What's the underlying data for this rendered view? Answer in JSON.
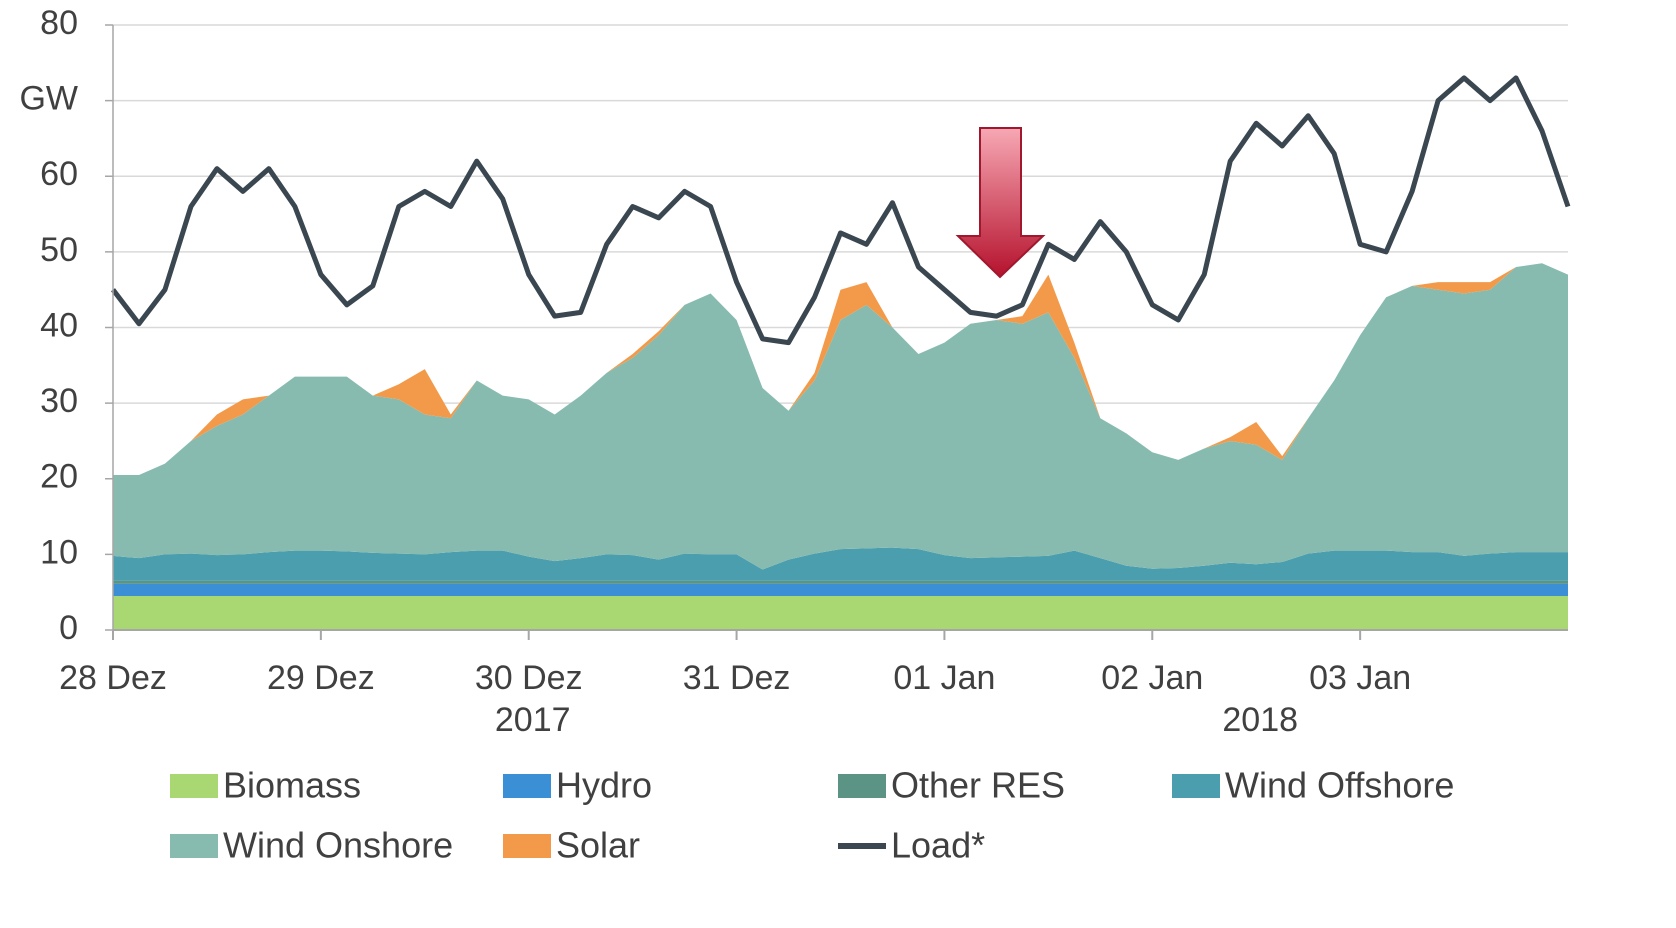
{
  "chart_data": {
    "type": "area",
    "stacked": true,
    "categories": [
      "28 Dez",
      null,
      null,
      null,
      null,
      null,
      null,
      null,
      "29 Dez",
      null,
      null,
      null,
      null,
      null,
      null,
      null,
      "30 Dez",
      null,
      null,
      null,
      null,
      null,
      null,
      null,
      "31 Dez",
      null,
      null,
      null,
      null,
      null,
      null,
      null,
      "01 Jan",
      null,
      null,
      null,
      null,
      null,
      null,
      null,
      "02 Jan",
      null,
      null,
      null,
      null,
      null,
      null,
      null,
      "03 Jan",
      null,
      null,
      null,
      null,
      null,
      null,
      null,
      null
    ],
    "x_group_labels": [
      {
        "label": "2017",
        "from": 0,
        "to": 32
      },
      {
        "label": "2018",
        "from": 32,
        "to": 56
      }
    ],
    "ylim": [
      0,
      80
    ],
    "yticks": [
      0,
      10,
      20,
      30,
      40,
      50,
      60,
      {
        "value": 70,
        "label": "GW"
      },
      80
    ],
    "grid": true,
    "series": [
      {
        "name": "Biomass",
        "color": "#a9d873",
        "values": [
          4.5,
          4.5,
          4.5,
          4.5,
          4.5,
          4.5,
          4.5,
          4.5,
          4.5,
          4.5,
          4.5,
          4.5,
          4.5,
          4.5,
          4.5,
          4.5,
          4.5,
          4.5,
          4.5,
          4.5,
          4.5,
          4.5,
          4.5,
          4.5,
          4.5,
          4.5,
          4.5,
          4.5,
          4.5,
          4.5,
          4.5,
          4.5,
          4.5,
          4.5,
          4.5,
          4.5,
          4.5,
          4.5,
          4.5,
          4.5,
          4.5,
          4.5,
          4.5,
          4.5,
          4.5,
          4.5,
          4.5,
          4.5,
          4.5,
          4.5,
          4.5,
          4.5,
          4.5,
          4.5,
          4.5,
          4.5,
          4.5
        ]
      },
      {
        "name": "Hydro",
        "color": "#3b8fd4",
        "values": [
          1.6,
          1.6,
          1.6,
          1.6,
          1.6,
          1.6,
          1.6,
          1.6,
          1.6,
          1.6,
          1.6,
          1.6,
          1.6,
          1.6,
          1.6,
          1.6,
          1.6,
          1.6,
          1.6,
          1.6,
          1.6,
          1.6,
          1.6,
          1.6,
          1.6,
          1.6,
          1.6,
          1.6,
          1.6,
          1.6,
          1.6,
          1.6,
          1.6,
          1.6,
          1.6,
          1.6,
          1.6,
          1.6,
          1.6,
          1.6,
          1.6,
          1.6,
          1.6,
          1.6,
          1.6,
          1.6,
          1.6,
          1.6,
          1.6,
          1.6,
          1.6,
          1.6,
          1.6,
          1.6,
          1.6,
          1.6,
          1.6
        ]
      },
      {
        "name": "Other RES",
        "color": "#5b9484",
        "values": [
          0.4,
          0.4,
          0.4,
          0.4,
          0.4,
          0.4,
          0.4,
          0.4,
          0.4,
          0.4,
          0.4,
          0.4,
          0.4,
          0.4,
          0.4,
          0.4,
          0.4,
          0.4,
          0.4,
          0.4,
          0.4,
          0.4,
          0.4,
          0.4,
          0.4,
          0.4,
          0.4,
          0.4,
          0.4,
          0.4,
          0.4,
          0.4,
          0.4,
          0.4,
          0.4,
          0.4,
          0.4,
          0.4,
          0.4,
          0.4,
          0.4,
          0.4,
          0.4,
          0.4,
          0.4,
          0.4,
          0.4,
          0.4,
          0.4,
          0.4,
          0.4,
          0.4,
          0.4,
          0.4,
          0.4,
          0.4,
          0.4
        ]
      },
      {
        "name": "Wind Offshore",
        "color": "#4a9ead",
        "values": [
          3.3,
          3.0,
          3.5,
          3.6,
          3.4,
          3.5,
          3.8,
          4.0,
          4.0,
          3.9,
          3.7,
          3.6,
          3.5,
          3.8,
          4.0,
          4.0,
          3.2,
          2.6,
          3.0,
          3.5,
          3.4,
          2.8,
          3.6,
          3.5,
          3.5,
          1.5,
          2.8,
          3.6,
          4.2,
          4.3,
          4.4,
          4.2,
          3.4,
          3.0,
          3.1,
          3.2,
          3.3,
          4.0,
          3.0,
          2.0,
          1.6,
          1.7,
          2.0,
          2.4,
          2.2,
          2.5,
          3.6,
          4.0,
          4.0,
          4.0,
          3.8,
          3.8,
          3.3,
          3.6,
          3.8,
          3.8,
          3.8
        ]
      },
      {
        "name": "Wind Onshore",
        "color": "#88bbb0",
        "values": [
          10.7,
          11.0,
          12.0,
          14.9,
          17.1,
          18.5,
          20.7,
          23.0,
          23.0,
          23.1,
          20.8,
          20.4,
          18.5,
          17.7,
          22.5,
          20.5,
          20.8,
          19.4,
          21.5,
          24.0,
          26.1,
          29.7,
          32.9,
          34.5,
          31.0,
          24.0,
          19.7,
          22.9,
          30.3,
          32.2,
          29.1,
          25.8,
          28.1,
          31.0,
          31.4,
          30.8,
          32.2,
          25.5,
          18.5,
          17.5,
          15.4,
          14.3,
          15.5,
          16.1,
          15.8,
          13.5,
          17.9,
          22.5,
          28.5,
          33.5,
          35.2,
          34.7,
          34.7,
          34.9,
          37.7,
          38.2,
          36.7
        ]
      },
      {
        "name": "Solar",
        "color": "#f39a4a",
        "values": [
          0,
          0,
          0,
          0,
          1.5,
          2,
          0,
          0,
          0,
          0,
          0,
          2,
          6,
          0.5,
          0,
          0,
          0,
          0,
          0,
          0,
          0.5,
          0.5,
          0,
          0,
          0,
          0,
          0,
          1,
          4,
          3,
          0,
          0,
          0,
          0,
          0,
          1,
          5,
          2,
          0,
          0,
          0,
          0,
          0,
          0.5,
          3,
          0.5,
          0,
          0,
          0,
          0,
          0,
          1,
          1.5,
          1,
          0,
          0,
          0
        ]
      },
      {
        "name": "Load*",
        "color": "#3a4750",
        "type": "line",
        "values": [
          45,
          40.5,
          45,
          56,
          61,
          58,
          61,
          56,
          47,
          43,
          45.5,
          56,
          58,
          56,
          62,
          57,
          47,
          41.5,
          42,
          51,
          56,
          54.5,
          58,
          56,
          46,
          38.5,
          38,
          44,
          52.5,
          51,
          56.5,
          48,
          45,
          42,
          41.5,
          43,
          51,
          49,
          54,
          50,
          43,
          41,
          47,
          62,
          67,
          64,
          68,
          63,
          51,
          50,
          58,
          70,
          73,
          70,
          73,
          66,
          56
        ]
      }
    ]
  }
}
